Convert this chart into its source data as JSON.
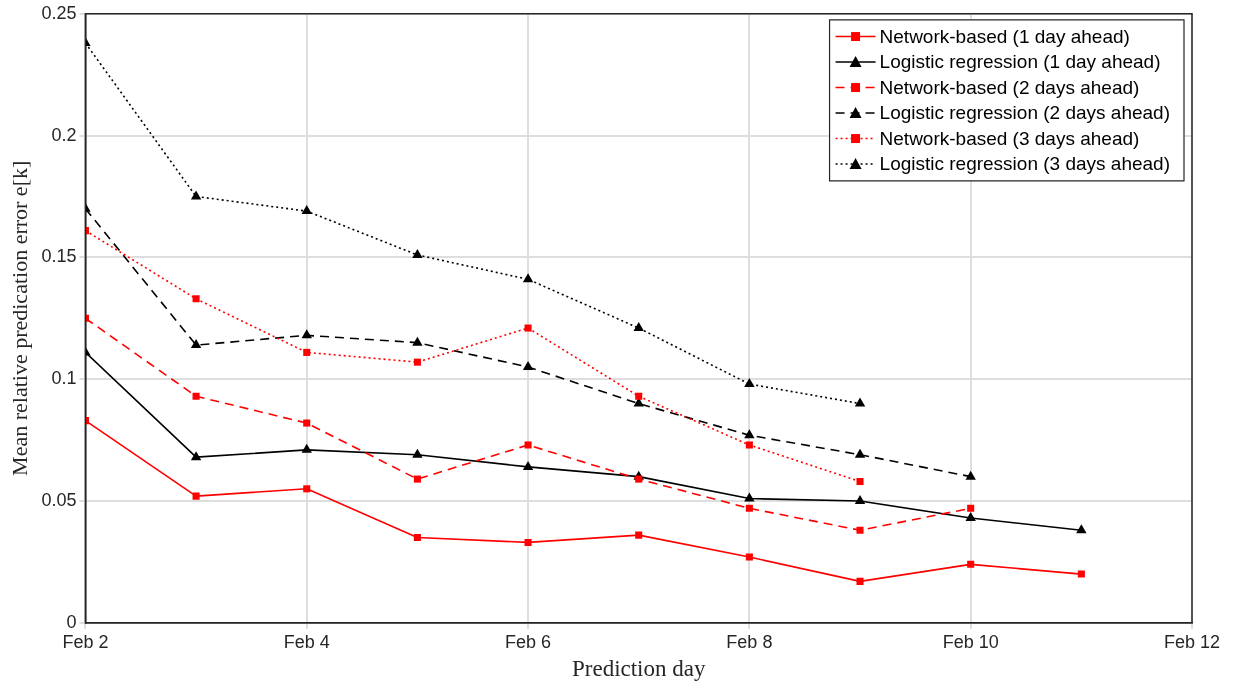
{
  "chart_data": {
    "type": "line",
    "xlabel": "Prediction day",
    "ylabel": "Mean relative predication error e[k]",
    "x": [
      "--02-02",
      "--02-03",
      "--02-04",
      "--02-05",
      "--02-06",
      "--02-07",
      "--02-08",
      "--02-09",
      "--02-10",
      "--02-11"
    ],
    "xlim": [
      "--02-02",
      "--02-12"
    ],
    "xticks": [
      {
        "value": "--02-02",
        "label": "Feb 2"
      },
      {
        "value": "--02-04",
        "label": "Feb 4"
      },
      {
        "value": "--02-06",
        "label": "Feb 6"
      },
      {
        "value": "--02-08",
        "label": "Feb 8"
      },
      {
        "value": "--02-10",
        "label": "Feb 10"
      },
      {
        "value": "--02-12",
        "label": "Feb 12"
      }
    ],
    "ylim": [
      0,
      0.25
    ],
    "yticks": [
      0,
      0.05,
      0.1,
      0.15,
      0.2,
      0.25
    ],
    "grid": true,
    "legend": "top right",
    "series": [
      {
        "name": "Network-based (1 day ahead)",
        "color": "#ff0000",
        "marker": "square",
        "line_style": "solid",
        "values": [
          0.083,
          0.052,
          0.055,
          0.035,
          0.033,
          0.036,
          0.027,
          0.017,
          0.024,
          0.02
        ]
      },
      {
        "name": "Logistic regression (1 day ahead)",
        "color": "#000000",
        "marker": "triangle",
        "line_style": "solid",
        "values": [
          0.111,
          0.068,
          0.071,
          0.069,
          0.064,
          0.06,
          0.051,
          0.05,
          0.043,
          0.038
        ]
      },
      {
        "name": "Network-based (2 days ahead)",
        "color": "#ff0000",
        "marker": "square",
        "line_style": "dashed",
        "values": [
          0.125,
          0.093,
          0.082,
          0.059,
          0.073,
          0.059,
          0.047,
          0.038,
          0.047,
          null
        ]
      },
      {
        "name": "Logistic regression (2 days ahead)",
        "color": "#000000",
        "marker": "triangle",
        "line_style": "dashed",
        "values": [
          0.17,
          0.114,
          0.118,
          0.115,
          0.105,
          0.09,
          0.077,
          0.069,
          0.06,
          null
        ]
      },
      {
        "name": "Network-based (3 days ahead)",
        "color": "#ff0000",
        "marker": "square",
        "line_style": "dotted",
        "values": [
          0.161,
          0.133,
          0.111,
          0.107,
          0.121,
          0.093,
          0.073,
          0.058,
          null,
          null
        ]
      },
      {
        "name": "Logistic regression (3 days ahead)",
        "color": "#000000",
        "marker": "triangle",
        "line_style": "dotted",
        "values": [
          0.238,
          0.175,
          0.169,
          0.151,
          0.141,
          0.121,
          0.098,
          0.09,
          null,
          null
        ]
      }
    ]
  }
}
